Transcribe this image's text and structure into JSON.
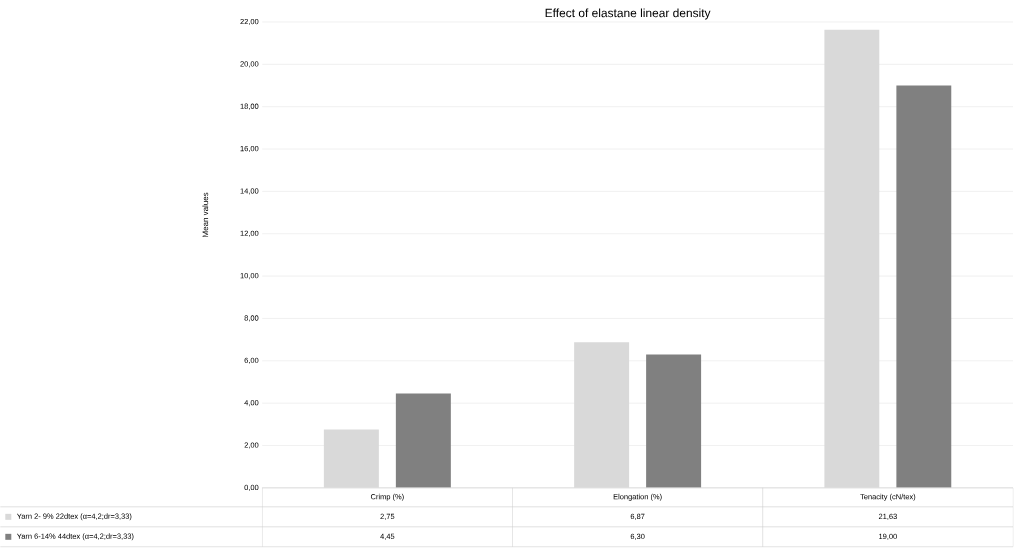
{
  "chart_data": {
    "type": "bar",
    "title": "Effect of elastane linear density",
    "ylabel": "Mean values",
    "categories": [
      "Crimp (%)",
      "Elongation (%)",
      "Tenacity (cN/tex)"
    ],
    "series": [
      {
        "name": "Yarn 2- 9% 22dtex (α=4,2;dr=3,33)",
        "color": "#d9d9d9",
        "values": [
          2.75,
          6.87,
          21.63
        ],
        "value_labels": [
          "2,75",
          "6,87",
          "21,63"
        ]
      },
      {
        "name": "Yarn 6-14% 44dtex (α=4,2;dr=3,33)",
        "color": "#808080",
        "values": [
          4.45,
          6.3,
          19.0
        ],
        "value_labels": [
          "4,45",
          "6,30",
          "19,00"
        ]
      }
    ],
    "ylim": [
      0,
      22
    ],
    "yticks": [
      {
        "value": 0,
        "label": "0,00"
      },
      {
        "value": 2,
        "label": "2,00"
      },
      {
        "value": 4,
        "label": "4,00"
      },
      {
        "value": 6,
        "label": "6,00"
      },
      {
        "value": 8,
        "label": "8,00"
      },
      {
        "value": 10,
        "label": "10,00"
      },
      {
        "value": 12,
        "label": "12,00"
      },
      {
        "value": 14,
        "label": "14,00"
      },
      {
        "value": 16,
        "label": "16,00"
      },
      {
        "value": 18,
        "label": "18,00"
      },
      {
        "value": 20,
        "label": "20,00"
      },
      {
        "value": 22,
        "label": "22,00"
      }
    ],
    "grid": "y",
    "legend": "bottom"
  }
}
